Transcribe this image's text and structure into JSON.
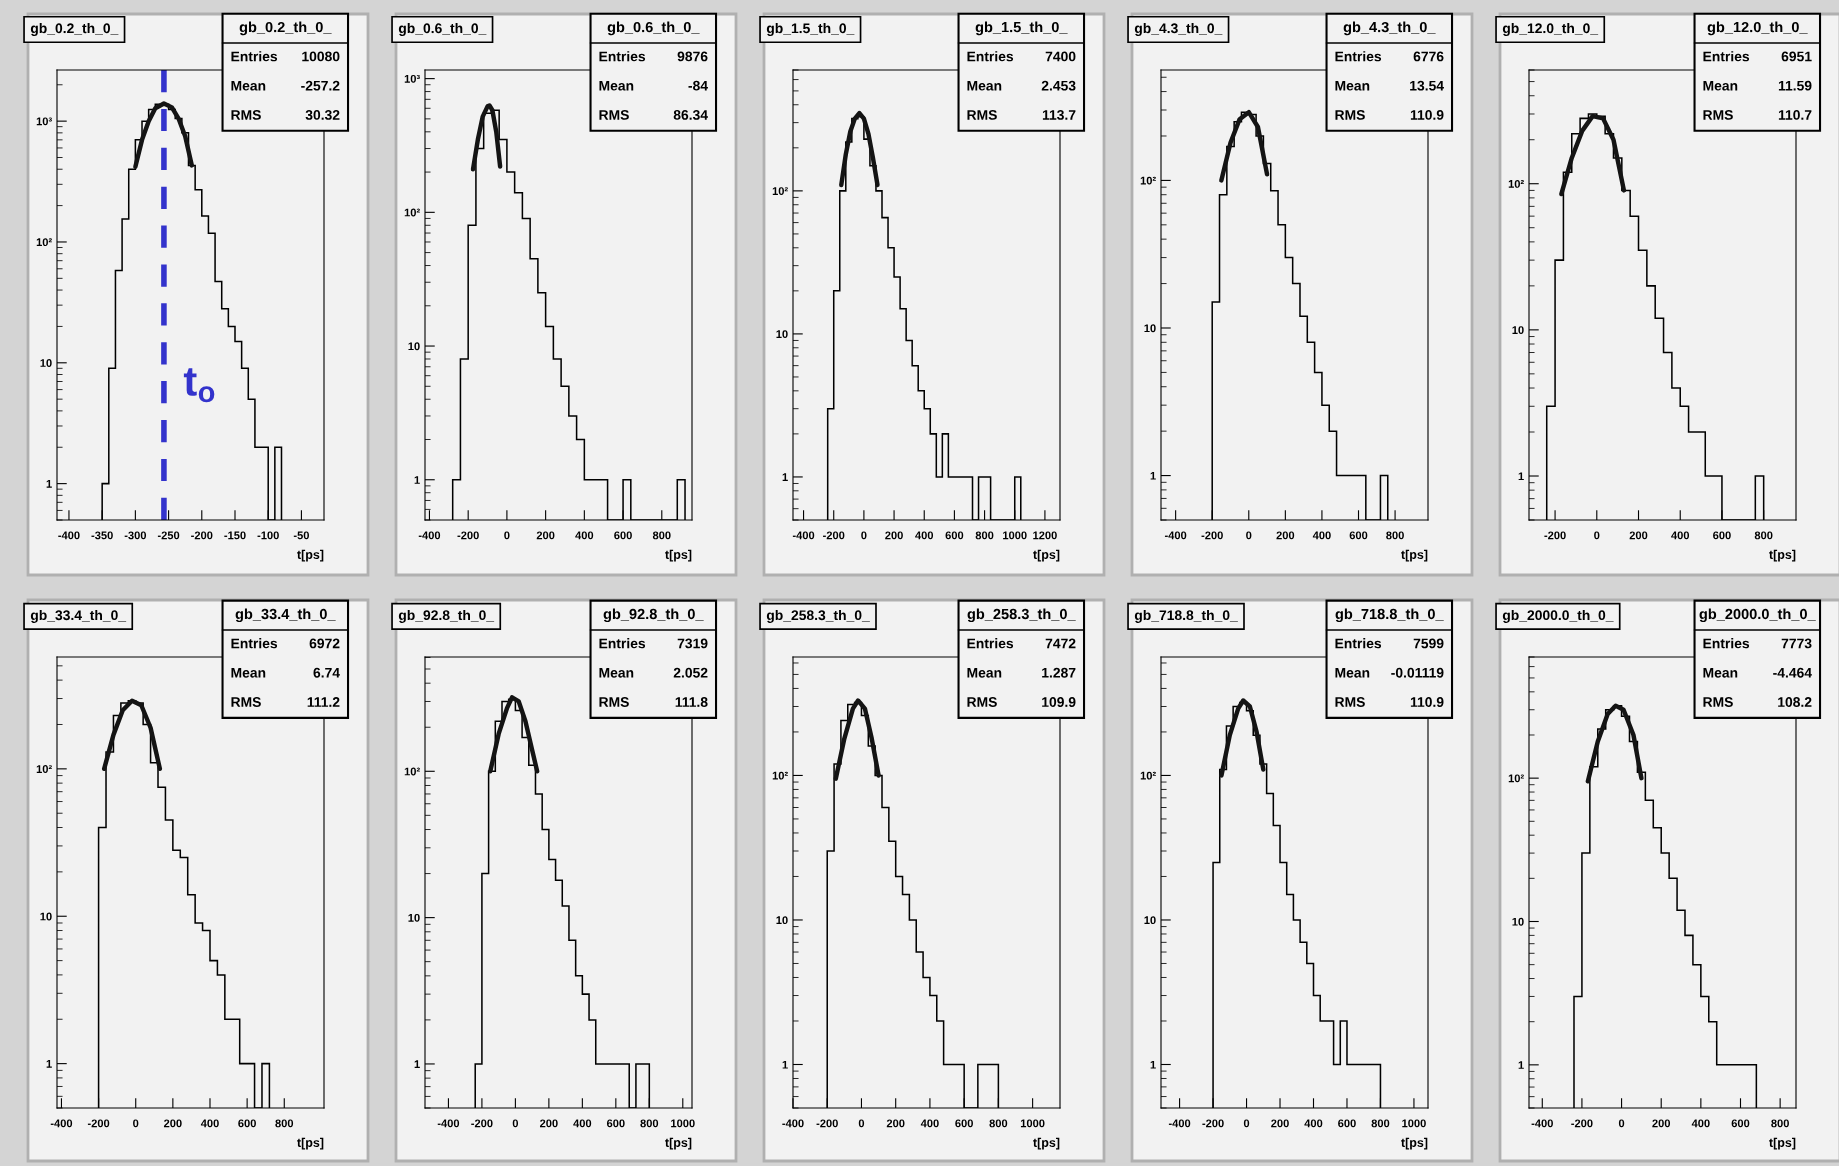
{
  "chart_data": [
    {
      "type": "histogram",
      "title": "gb_0.2_th_0_",
      "xlabel": "t[ps]",
      "color": "#000000",
      "log": true,
      "xlim": [
        -418,
        -16
      ],
      "xticks": [
        -400,
        -350,
        -300,
        -250,
        -200,
        -150,
        -100,
        -50
      ],
      "ylim": [
        0.5,
        2650
      ],
      "yticks": [
        {
          "value": 1,
          "label": "1"
        },
        {
          "value": 10,
          "label": "10"
        },
        {
          "value": 100,
          "label": "10²"
        },
        {
          "value": 1000,
          "label": "10³"
        }
      ],
      "bins": [
        -350,
        -340,
        -330,
        -320,
        -310,
        -300,
        -290,
        -280,
        -270,
        -260,
        -250,
        -240,
        -230,
        -220,
        -210,
        -200,
        -190,
        -180,
        -170,
        -160,
        -150,
        -140,
        -130,
        -120,
        -110,
        -100,
        -90,
        -80
      ],
      "values": [
        1,
        9,
        58,
        155,
        400,
        700,
        1000,
        1250,
        1380,
        1380,
        1250,
        1050,
        800,
        430,
        270,
        164,
        118,
        47,
        28,
        20,
        15,
        9,
        5,
        2,
        2,
        null,
        2
      ],
      "series": [
        {
          "type": "line",
          "color": "#141414",
          "x": [
            -300,
            -290,
            -280,
            -270,
            -257,
            -245,
            -235,
            -225,
            -215
          ],
          "values": [
            420,
            700,
            1000,
            1280,
            1400,
            1300,
            1050,
            750,
            430
          ]
        }
      ],
      "ref_lines": [
        {
          "axis": "x",
          "value": -257,
          "label": "t$_{o}$",
          "color": "#3333cc",
          "line_style": "dashed"
        }
      ],
      "annotations": [
        "gb_0.2_th_0_",
        "Entries",
        "10080",
        "Mean",
        "-257.2",
        "RMS",
        "30.32"
      ]
    },
    {
      "type": "histogram",
      "title": "gb_0.6_th_0_",
      "xlabel": "t[ps]",
      "color": "#000000",
      "log": true,
      "xlim": [
        -423,
        956
      ],
      "xticks": [
        -400,
        -200,
        0,
        200,
        400,
        600,
        800
      ],
      "ylim": [
        0.5,
        1160
      ],
      "yticks": [
        {
          "value": 1,
          "label": "1"
        },
        {
          "value": 10,
          "label": "10"
        },
        {
          "value": 100,
          "label": "10²"
        },
        {
          "value": 1000,
          "label": "10³"
        }
      ],
      "bins": [
        -280,
        -240,
        -200,
        -160,
        -120,
        -80,
        -40,
        0,
        40,
        80,
        120,
        160,
        200,
        240,
        280,
        320,
        360,
        400,
        440,
        480,
        520,
        560,
        600,
        640,
        680,
        720,
        760,
        800,
        840,
        880,
        920
      ],
      "values": [
        1,
        8,
        80,
        300,
        550,
        580,
        350,
        200,
        140,
        90,
        45,
        25,
        14,
        8,
        5,
        3,
        2,
        1,
        1,
        1,
        null,
        null,
        1,
        null,
        null,
        null,
        null,
        null,
        null,
        1
      ],
      "series": [
        {
          "type": "line",
          "color": "#141414",
          "x": [
            -175,
            -150,
            -125,
            -100,
            -90,
            -75,
            -55,
            -35
          ],
          "values": [
            210,
            350,
            520,
            620,
            630,
            580,
            400,
            220
          ]
        }
      ],
      "annotations": [
        "gb_0.6_th_0_",
        "Entries",
        "9876",
        "Mean",
        "-84",
        "RMS",
        "86.34"
      ]
    },
    {
      "type": "histogram",
      "title": "gb_1.5_th_0_",
      "xlabel": "t[ps]",
      "color": "#000000",
      "log": true,
      "xlim": [
        -470,
        1300
      ],
      "xticks": [
        -400,
        -200,
        0,
        200,
        400,
        600,
        800,
        1000,
        1200
      ],
      "ylim": [
        0.5,
        700
      ],
      "yticks": [
        {
          "value": 1,
          "label": "1"
        },
        {
          "value": 10,
          "label": "10"
        },
        {
          "value": 100,
          "label": "10²"
        }
      ],
      "bins": [
        -240,
        -200,
        -160,
        -120,
        -80,
        -40,
        0,
        40,
        80,
        120,
        160,
        200,
        240,
        280,
        320,
        360,
        400,
        440,
        480,
        520,
        560,
        600,
        640,
        680,
        720,
        760,
        800,
        840,
        880,
        920,
        960,
        1000,
        1040
      ],
      "values": [
        3,
        20,
        100,
        220,
        320,
        330,
        230,
        150,
        100,
        65,
        40,
        25,
        15,
        9,
        6,
        4,
        3,
        2,
        1,
        2,
        1,
        1,
        1,
        1,
        null,
        1,
        1,
        null,
        null,
        null,
        null,
        1
      ],
      "series": [
        {
          "type": "line",
          "color": "#141414",
          "x": [
            -150,
            -120,
            -90,
            -60,
            -30,
            0,
            30,
            60,
            90
          ],
          "values": [
            110,
            180,
            260,
            320,
            350,
            320,
            250,
            170,
            110
          ]
        }
      ],
      "annotations": [
        "gb_1.5_th_0_",
        "Entries",
        "7400",
        "Mean",
        "2.453",
        "RMS",
        "113.7"
      ]
    },
    {
      "type": "histogram",
      "title": "gb_4.3_th_0_",
      "xlabel": "t[ps]",
      "color": "#000000",
      "log": true,
      "xlim": [
        -480,
        980
      ],
      "xticks": [
        -400,
        -200,
        0,
        200,
        400,
        600,
        800
      ],
      "ylim": [
        0.5,
        560
      ],
      "yticks": [
        {
          "value": 1,
          "label": "1"
        },
        {
          "value": 10,
          "label": "10"
        },
        {
          "value": 100,
          "label": "10²"
        }
      ],
      "bins": [
        -200,
        -160,
        -120,
        -80,
        -40,
        0,
        40,
        80,
        120,
        160,
        200,
        240,
        280,
        320,
        360,
        400,
        440,
        480,
        520,
        560,
        600,
        640,
        680,
        720,
        760
      ],
      "values": [
        15,
        80,
        170,
        250,
        290,
        280,
        200,
        130,
        85,
        50,
        30,
        20,
        12,
        8,
        5,
        3,
        2,
        1,
        1,
        1,
        1,
        null,
        null,
        1
      ],
      "series": [
        {
          "type": "line",
          "color": "#141414",
          "x": [
            -150,
            -100,
            -50,
            0,
            50,
            100
          ],
          "values": [
            100,
            180,
            260,
            290,
            230,
            110
          ]
        }
      ],
      "annotations": [
        "gb_4.3_th_0_",
        "Entries",
        "6776",
        "Mean",
        "13.54",
        "RMS",
        "110.9"
      ]
    },
    {
      "type": "histogram",
      "title": "gb_12.0_th_0_",
      "xlabel": "t[ps]",
      "color": "#000000",
      "log": true,
      "xlim": [
        -325,
        955
      ],
      "xticks": [
        -200,
        0,
        200,
        400,
        600,
        800
      ],
      "ylim": [
        0.5,
        600
      ],
      "yticks": [
        {
          "value": 1,
          "label": "1"
        },
        {
          "value": 10,
          "label": "10"
        },
        {
          "value": 100,
          "label": "10²"
        }
      ],
      "bins": [
        -240,
        -200,
        -160,
        -120,
        -80,
        -40,
        0,
        40,
        80,
        120,
        160,
        200,
        240,
        280,
        320,
        360,
        400,
        440,
        480,
        520,
        560,
        600,
        640,
        680,
        720,
        760,
        800
      ],
      "values": [
        3,
        30,
        120,
        220,
        280,
        300,
        290,
        220,
        150,
        90,
        60,
        35,
        20,
        12,
        7,
        4,
        3,
        2,
        2,
        1,
        1,
        null,
        null,
        null,
        null,
        1
      ],
      "series": [
        {
          "type": "line",
          "color": "#141414",
          "x": [
            -170,
            -120,
            -70,
            -20,
            30,
            80,
            130
          ],
          "values": [
            85,
            150,
            230,
            290,
            280,
            200,
            90
          ]
        }
      ],
      "annotations": [
        "gb_12.0_th_0_",
        "Entries",
        "6951",
        "Mean",
        "11.59",
        "RMS",
        "110.7"
      ]
    },
    {
      "type": "histogram",
      "title": "gb_33.4_th_0_",
      "xlabel": "t[ps]",
      "color": "#000000",
      "log": true,
      "xlim": [
        -424,
        1014
      ],
      "xticks": [
        -400,
        -200,
        0,
        200,
        400,
        600,
        800
      ],
      "ylim": [
        0.5,
        574
      ],
      "yticks": [
        {
          "value": 1,
          "label": "1"
        },
        {
          "value": 10,
          "label": "10"
        },
        {
          "value": 100,
          "label": "10²"
        }
      ],
      "bins": [
        -200,
        -160,
        -120,
        -80,
        -40,
        0,
        40,
        80,
        120,
        160,
        200,
        240,
        280,
        320,
        360,
        400,
        440,
        480,
        520,
        560,
        600,
        640,
        680,
        720
      ],
      "values": [
        40,
        130,
        230,
        280,
        290,
        280,
        200,
        110,
        75,
        45,
        28,
        25,
        14,
        9,
        8,
        5,
        4,
        2,
        2,
        1,
        1,
        null,
        1
      ],
      "series": [
        {
          "type": "line",
          "color": "#141414",
          "x": [
            -170,
            -120,
            -70,
            -20,
            30,
            80,
            130
          ],
          "values": [
            100,
            170,
            250,
            290,
            270,
            190,
            100
          ]
        }
      ],
      "annotations": [
        "gb_33.4_th_0_",
        "Entries",
        "6972",
        "Mean",
        "6.74",
        "RMS",
        "111.2"
      ]
    },
    {
      "type": "histogram",
      "title": "gb_92.8_th_0_",
      "xlabel": "t[ps]",
      "color": "#000000",
      "log": true,
      "xlim": [
        -540,
        1055
      ],
      "xticks": [
        -400,
        -200,
        0,
        200,
        400,
        600,
        800,
        1000
      ],
      "ylim": [
        0.5,
        604
      ],
      "yticks": [
        {
          "value": 1,
          "label": "1"
        },
        {
          "value": 10,
          "label": "10"
        },
        {
          "value": 100,
          "label": "10²"
        }
      ],
      "bins": [
        -240,
        -200,
        -160,
        -120,
        -80,
        -40,
        0,
        40,
        80,
        120,
        160,
        200,
        240,
        280,
        320,
        360,
        400,
        440,
        480,
        520,
        560,
        600,
        640,
        680,
        720,
        760,
        800
      ],
      "values": [
        1,
        20,
        100,
        220,
        300,
        310,
        260,
        170,
        110,
        70,
        40,
        25,
        18,
        12,
        7,
        4,
        3,
        2,
        1,
        1,
        1,
        1,
        1,
        null,
        1,
        1
      ],
      "series": [
        {
          "type": "line",
          "color": "#141414",
          "x": [
            -150,
            -100,
            -50,
            -20,
            20,
            60,
            100,
            130
          ],
          "values": [
            100,
            180,
            270,
            320,
            300,
            220,
            140,
            100
          ]
        }
      ],
      "annotations": [
        "gb_92.8_th_0_",
        "Entries",
        "7319",
        "Mean",
        "2.052",
        "RMS",
        "111.8"
      ]
    },
    {
      "type": "histogram",
      "title": "gb_258.3_th_0_",
      "xlabel": "t[ps]",
      "color": "#000000",
      "log": true,
      "xlim": [
        -400,
        1160
      ],
      "xticks": [
        -400,
        -200,
        0,
        200,
        400,
        600,
        800,
        1000
      ],
      "ylim": [
        0.5,
        660
      ],
      "yticks": [
        {
          "value": 1,
          "label": "1"
        },
        {
          "value": 10,
          "label": "10"
        },
        {
          "value": 100,
          "label": "10²"
        }
      ],
      "bins": [
        -200,
        -160,
        -120,
        -80,
        -40,
        0,
        40,
        80,
        120,
        160,
        200,
        240,
        280,
        320,
        360,
        400,
        440,
        480,
        520,
        560,
        600,
        640,
        680,
        720,
        760,
        800
      ],
      "values": [
        30,
        120,
        240,
        310,
        320,
        260,
        160,
        100,
        60,
        35,
        20,
        15,
        10,
        6,
        4,
        3,
        2,
        1,
        1,
        1,
        null,
        null,
        1,
        1,
        1
      ],
      "series": [
        {
          "type": "line",
          "color": "#141414",
          "x": [
            -150,
            -100,
            -50,
            -20,
            20,
            60,
            100
          ],
          "values": [
            95,
            180,
            290,
            330,
            290,
            180,
            100
          ]
        }
      ],
      "annotations": [
        "gb_258.3_th_0_",
        "Entries",
        "7472",
        "Mean",
        "1.287",
        "RMS",
        "109.9"
      ]
    },
    {
      "type": "histogram",
      "title": "gb_718.8_th_0_",
      "xlabel": "t[ps]",
      "color": "#000000",
      "log": true,
      "xlim": [
        -511,
        1084
      ],
      "xticks": [
        -400,
        -200,
        0,
        200,
        400,
        600,
        800,
        1000
      ],
      "ylim": [
        0.5,
        660
      ],
      "yticks": [
        {
          "value": 1,
          "label": "1"
        },
        {
          "value": 10,
          "label": "10"
        },
        {
          "value": 100,
          "label": "10²"
        }
      ],
      "bins": [
        -200,
        -160,
        -120,
        -80,
        -40,
        0,
        40,
        80,
        120,
        160,
        200,
        240,
        280,
        320,
        360,
        400,
        440,
        480,
        520,
        560,
        600,
        640,
        680,
        720,
        760,
        800
      ],
      "values": [
        25,
        110,
        220,
        300,
        320,
        280,
        190,
        120,
        75,
        45,
        25,
        15,
        10,
        7,
        5,
        3,
        2,
        2,
        1,
        2,
        1,
        1,
        1,
        1,
        1
      ],
      "series": [
        {
          "type": "line",
          "color": "#141414",
          "x": [
            -150,
            -100,
            -50,
            -20,
            20,
            60,
            100
          ],
          "values": [
            100,
            190,
            290,
            330,
            300,
            200,
            110
          ]
        }
      ],
      "annotations": [
        "gb_718.8_th_0_",
        "Entries",
        "7599",
        "Mean",
        "-0.01119",
        "RMS",
        "110.9"
      ]
    },
    {
      "type": "histogram",
      "title": "gb_2000.0_th_0_",
      "xlabel": "t[ps]",
      "color": "#000000",
      "log": true,
      "xlim": [
        -467,
        880
      ],
      "xticks": [
        -400,
        -200,
        0,
        200,
        400,
        600,
        800
      ],
      "ylim": [
        0.5,
        700
      ],
      "yticks": [
        {
          "value": 1,
          "label": "1"
        },
        {
          "value": 10,
          "label": "10"
        },
        {
          "value": 100,
          "label": "10²"
        }
      ],
      "bins": [
        -240,
        -200,
        -160,
        -120,
        -80,
        -40,
        0,
        40,
        80,
        120,
        160,
        200,
        240,
        280,
        320,
        360,
        400,
        440,
        480,
        520,
        560,
        600,
        640,
        680
      ],
      "values": [
        3,
        30,
        120,
        220,
        300,
        320,
        270,
        180,
        110,
        70,
        45,
        30,
        20,
        12,
        8,
        5,
        3,
        2,
        1,
        1,
        1,
        1,
        1
      ],
      "series": [
        {
          "type": "line",
          "color": "#141414",
          "x": [
            -170,
            -120,
            -70,
            -30,
            10,
            60,
            100
          ],
          "values": [
            95,
            180,
            280,
            320,
            300,
            200,
            100
          ]
        }
      ],
      "annotations": [
        "gb_2000.0_th_0_",
        "Entries",
        "7773",
        "Mean",
        "-4.464",
        "RMS",
        "108.2"
      ]
    }
  ]
}
